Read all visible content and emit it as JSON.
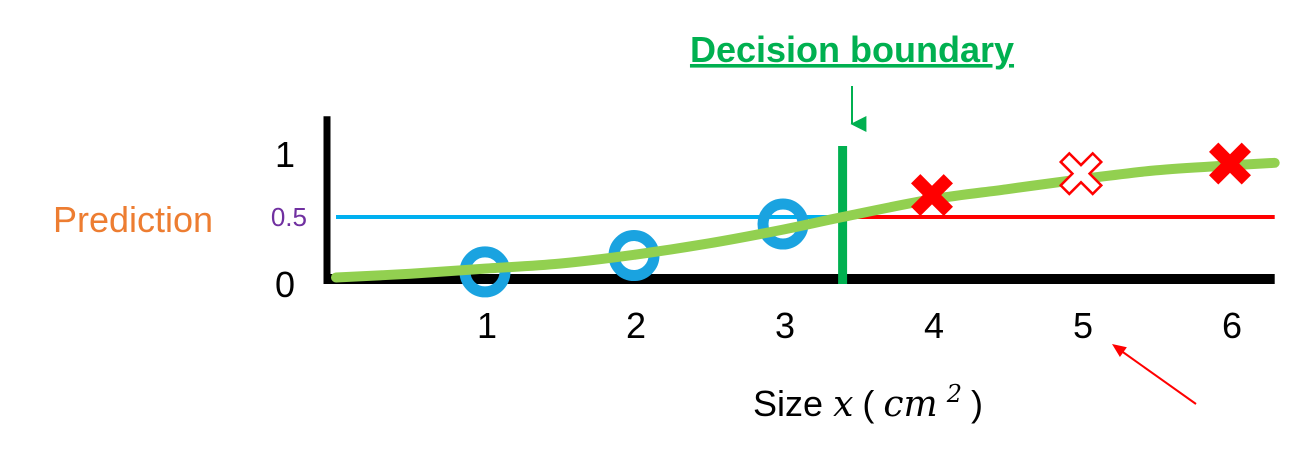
{
  "chart_data": {
    "type": "scatter",
    "title": "Decision boundary",
    "ylabel": "Prediction",
    "xlabel": {
      "prefix": "Size ",
      "var": "x",
      "open": " (",
      "unit": "cm",
      "exp": "2",
      "close": ")"
    },
    "x_ticks": [
      "1",
      "2",
      "3",
      "4",
      "5",
      "6"
    ],
    "y_ticks": [
      {
        "label": "1",
        "value": 1
      },
      {
        "label": "0.5",
        "value": 0.5
      },
      {
        "label": "0",
        "value": 0
      }
    ],
    "xlim": [
      0,
      6.3
    ],
    "ylim": [
      0,
      1.3
    ],
    "threshold": 0.5,
    "decision_boundary_x": 3.4,
    "series": [
      {
        "marker": "circle",
        "color": "#1aa3e0",
        "points": [
          [
            1,
            0.08
          ],
          [
            2,
            0.21
          ],
          [
            3,
            0.46
          ]
        ]
      },
      {
        "marker": "x",
        "color": "#ff0000",
        "points": [
          [
            4,
            0.69
          ],
          [
            5,
            0.86
          ],
          [
            6,
            0.94
          ]
        ],
        "hollow_index": 1
      }
    ],
    "curve": {
      "color": "#92d050",
      "points": [
        [
          0,
          0.02
        ],
        [
          0.5,
          0.05
        ],
        [
          1,
          0.09
        ],
        [
          1.5,
          0.13
        ],
        [
          2,
          0.2
        ],
        [
          2.5,
          0.29
        ],
        [
          3,
          0.4
        ],
        [
          3.4,
          0.5
        ],
        [
          4,
          0.64
        ],
        [
          4.5,
          0.72
        ],
        [
          5,
          0.8
        ],
        [
          5.5,
          0.87
        ],
        [
          6,
          0.91
        ],
        [
          6.3,
          0.93
        ]
      ]
    },
    "colors": {
      "axis": "#000000",
      "title": "#00b050",
      "boundary": "#00b050",
      "ylabel": "#ed7d31",
      "threshold_label": "#7030a0",
      "threshold_left": "#00b0f0",
      "threshold_right": "#ff0000",
      "annotation_arrow": "#ff0000"
    }
  }
}
